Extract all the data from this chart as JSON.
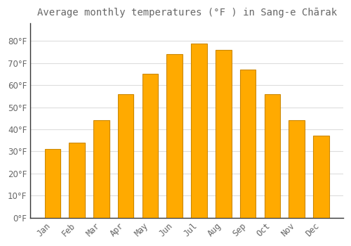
{
  "title": "Average monthly temperatures (°F ) in Sang-e Chārak",
  "months": [
    "Jan",
    "Feb",
    "Mar",
    "Apr",
    "May",
    "Jun",
    "Jul",
    "Aug",
    "Sep",
    "Oct",
    "Nov",
    "Dec"
  ],
  "values": [
    31,
    34,
    44,
    56,
    65,
    74,
    79,
    76,
    67,
    56,
    44,
    37
  ],
  "bar_color": "#FFAA00",
  "bar_edge_color": "#CC8800",
  "background_color": "#FFFFFF",
  "plot_bg_color": "#FFFFFF",
  "grid_color": "#DDDDDD",
  "text_color": "#666666",
  "axis_color": "#333333",
  "ylim": [
    0,
    88
  ],
  "yticks": [
    0,
    10,
    20,
    30,
    40,
    50,
    60,
    70,
    80
  ],
  "title_fontsize": 10,
  "tick_fontsize": 8.5
}
